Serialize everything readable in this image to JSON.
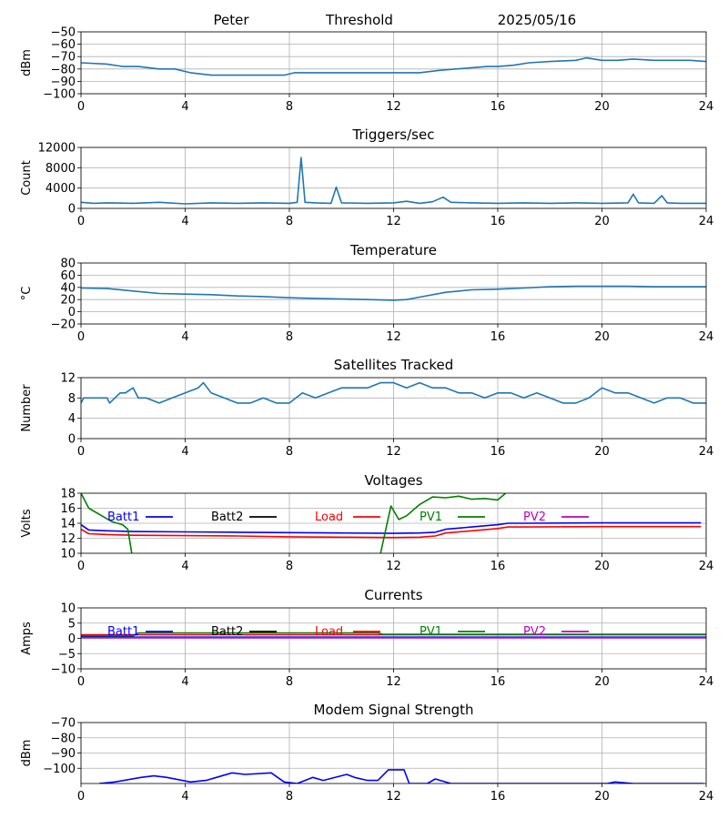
{
  "header": {
    "station": "Peter",
    "mode": "Threshold",
    "date": "2025/05/16"
  },
  "colors": {
    "default": "#1f77b4",
    "Batt1": "#0000ff",
    "Batt2": "#000000",
    "Load": "#ff0000",
    "PV1": "#008000",
    "PV2": "#bf00bf",
    "grid": "#b0b0b0"
  },
  "chart_data": [
    {
      "id": "threshold",
      "type": "line",
      "title": "",
      "ylabel": "dBm",
      "xlim": [
        0,
        24
      ],
      "xticks": [
        0,
        4,
        8,
        12,
        16,
        20,
        24
      ],
      "ylim": [
        -100,
        -50
      ],
      "yticks": [
        -100,
        -90,
        -80,
        -70,
        -60,
        -50
      ],
      "grid": true,
      "series": [
        {
          "color": "#1f77b4",
          "x": [
            0,
            1,
            1.6,
            2.2,
            3,
            3.6,
            4.2,
            5,
            6,
            7,
            7.8,
            8.2,
            9,
            10,
            11,
            12,
            13,
            13.8,
            14.4,
            15,
            15.6,
            16,
            16.6,
            17.2,
            18,
            19,
            19.4,
            20,
            20.6,
            21.2,
            22,
            22.8,
            23.4,
            24
          ],
          "values": [
            -75,
            -76,
            -78,
            -78,
            -80,
            -80,
            -83,
            -85,
            -85,
            -85,
            -85,
            -83,
            -83,
            -83,
            -83,
            -83,
            -83,
            -81,
            -80,
            -79,
            -78,
            -78,
            -77,
            -75,
            -74,
            -73,
            -71,
            -73,
            -73,
            -72,
            -73,
            -73,
            -73,
            -74
          ]
        }
      ]
    },
    {
      "id": "triggers",
      "type": "line",
      "title": "Triggers/sec",
      "ylabel": "Count",
      "xlim": [
        0,
        24
      ],
      "xticks": [
        0,
        4,
        8,
        12,
        16,
        20,
        24
      ],
      "ylim": [
        0,
        12000
      ],
      "yticks": [
        0,
        4000,
        8000,
        12000
      ],
      "grid": true,
      "series": [
        {
          "color": "#1f77b4",
          "x": [
            0,
            0.5,
            1,
            2,
            3,
            4,
            5,
            6,
            7,
            8,
            8.3,
            8.45,
            8.6,
            9,
            9.6,
            9.8,
            10,
            11,
            12,
            12.5,
            13,
            13.5,
            13.9,
            14.2,
            15,
            16,
            17,
            18,
            19,
            20,
            21,
            21.2,
            21.4,
            22,
            22.3,
            22.5,
            23,
            24
          ],
          "values": [
            1200,
            1000,
            1100,
            1000,
            1200,
            900,
            1100,
            1000,
            1100,
            1000,
            1200,
            10000,
            1200,
            1100,
            1000,
            4200,
            1100,
            1000,
            1100,
            1400,
            1000,
            1300,
            2200,
            1200,
            1100,
            1000,
            1100,
            1000,
            1100,
            1000,
            1100,
            2800,
            1100,
            1000,
            2500,
            1100,
            1000,
            1000
          ]
        }
      ]
    },
    {
      "id": "temperature",
      "type": "line",
      "title": "Temperature",
      "ylabel": "°C",
      "xlim": [
        0,
        24
      ],
      "xticks": [
        0,
        4,
        8,
        12,
        16,
        20,
        24
      ],
      "ylim": [
        -20,
        80
      ],
      "yticks": [
        -20,
        0,
        20,
        40,
        60,
        80
      ],
      "grid": true,
      "series": [
        {
          "color": "#1f77b4",
          "x": [
            0,
            1,
            2,
            3,
            4,
            5,
            6,
            7,
            8,
            9,
            10,
            11,
            12,
            12.5,
            13,
            14,
            15,
            16,
            17,
            18,
            19,
            20,
            21,
            22,
            23,
            24
          ],
          "values": [
            39,
            38,
            34,
            30,
            29,
            28,
            26,
            25,
            23,
            22,
            21,
            20,
            19,
            20,
            24,
            32,
            36,
            37,
            39,
            41,
            42,
            42,
            42,
            41,
            41,
            41
          ]
        }
      ]
    },
    {
      "id": "satellites",
      "type": "line",
      "title": "Satellites Tracked",
      "ylabel": "Number",
      "xlim": [
        0,
        24
      ],
      "xticks": [
        0,
        4,
        8,
        12,
        16,
        20,
        24
      ],
      "ylim": [
        0,
        12
      ],
      "yticks": [
        0,
        4,
        8,
        12
      ],
      "grid": true,
      "series": [
        {
          "color": "#1f77b4",
          "x": [
            0,
            0.1,
            1,
            1.1,
            1.5,
            1.7,
            2,
            2.2,
            2.5,
            3,
            3.5,
            4,
            4.5,
            4.7,
            5,
            5.5,
            6,
            6.5,
            7,
            7.5,
            8,
            8.5,
            9,
            9.5,
            10,
            10.5,
            11,
            11.5,
            12,
            12.5,
            13,
            13.5,
            14,
            14.5,
            15,
            15.5,
            16,
            16.5,
            17,
            17.5,
            18,
            18.5,
            19,
            19.5,
            20,
            20.5,
            21,
            21.5,
            22,
            22.5,
            23,
            23.5,
            24
          ],
          "values": [
            7,
            8,
            8,
            7,
            9,
            9,
            10,
            8,
            8,
            7,
            8,
            9,
            10,
            11,
            9,
            8,
            7,
            7,
            8,
            7,
            7,
            9,
            8,
            9,
            10,
            10,
            10,
            11,
            11,
            10,
            11,
            10,
            10,
            9,
            9,
            8,
            9,
            9,
            8,
            9,
            8,
            7,
            7,
            8,
            10,
            9,
            9,
            8,
            7,
            8,
            8,
            7,
            7
          ]
        }
      ]
    },
    {
      "id": "voltages",
      "type": "line",
      "title": "Voltages",
      "ylabel": "Volts",
      "xlim": [
        0,
        24
      ],
      "xticks": [
        0,
        4,
        8,
        12,
        16,
        20,
        24
      ],
      "ylim": [
        10,
        18
      ],
      "yticks": [
        10,
        12,
        14,
        16,
        18
      ],
      "grid": true,
      "legend": [
        "Batt1",
        "Batt2",
        "Load",
        "PV1",
        "PV2"
      ],
      "series": [
        {
          "name": "Batt1",
          "color": "#0000ff",
          "x": [
            0,
            0.3,
            1,
            2,
            4,
            6,
            8,
            10,
            12,
            13,
            13.6,
            14,
            15,
            16,
            16.4,
            17,
            20,
            23.8
          ],
          "values": [
            13.8,
            13.1,
            13.0,
            12.9,
            12.85,
            12.8,
            12.75,
            12.7,
            12.65,
            12.7,
            12.8,
            13.2,
            13.5,
            13.8,
            14.0,
            14.0,
            14.05,
            14.05
          ]
        },
        {
          "name": "Load",
          "color": "#ff0000",
          "x": [
            0,
            0.3,
            1,
            2,
            4,
            6,
            8,
            10,
            12,
            13,
            13.6,
            14,
            15,
            16,
            16.4,
            17,
            20,
            23.8
          ],
          "values": [
            13.2,
            12.6,
            12.5,
            12.4,
            12.35,
            12.3,
            12.2,
            12.15,
            12.1,
            12.15,
            12.3,
            12.7,
            13.0,
            13.3,
            13.5,
            13.5,
            13.55,
            13.55
          ]
        },
        {
          "name": "PV1",
          "color": "#008000",
          "x": [
            0,
            0.3,
            0.8,
            1.2,
            1.6,
            1.8,
            1.95
          ],
          "values": [
            18,
            16,
            15,
            14.2,
            13.8,
            13.2,
            10
          ]
        },
        {
          "name": "PV1",
          "color": "#008000",
          "x": [
            11.5,
            11.9,
            12.2,
            12.5,
            13,
            13.5,
            14,
            14.5,
            15,
            15.5,
            16,
            16.3
          ],
          "values": [
            10,
            16.3,
            14.5,
            15.0,
            16.5,
            17.5,
            17.4,
            17.6,
            17.2,
            17.3,
            17.1,
            18
          ]
        }
      ]
    },
    {
      "id": "currents",
      "type": "line",
      "title": "Currents",
      "ylabel": "Amps",
      "xlim": [
        0,
        24
      ],
      "xticks": [
        0,
        4,
        8,
        12,
        16,
        20,
        24
      ],
      "ylim": [
        -10,
        10
      ],
      "yticks": [
        -10,
        -5,
        0,
        5,
        10
      ],
      "grid": true,
      "legend": [
        "Batt1",
        "Batt2",
        "Load",
        "PV1",
        "PV2"
      ],
      "series": [
        {
          "name": "Load",
          "color": "#ff0000",
          "x": [
            0,
            24
          ],
          "values": [
            1.2,
            1.2
          ]
        },
        {
          "name": "PV1",
          "color": "#008000",
          "x": [
            0,
            2,
            2.2,
            11.4,
            11.6,
            12,
            24
          ],
          "values": [
            0.8,
            0.8,
            1.8,
            1.8,
            1.3,
            1.3,
            1.3
          ]
        },
        {
          "name": "Batt1",
          "color": "#0000ff",
          "x": [
            0,
            24
          ],
          "values": [
            0.4,
            0.4
          ]
        },
        {
          "name": "PV2",
          "color": "#bf00bf",
          "x": [
            0,
            24
          ],
          "values": [
            0.2,
            0.2
          ]
        }
      ]
    },
    {
      "id": "modem",
      "type": "line",
      "title": "Modem Signal Strength",
      "ylabel": "dBm",
      "xlim": [
        0,
        24
      ],
      "xticks": [
        0,
        4,
        8,
        12,
        16,
        20,
        24
      ],
      "ylim": [
        -110,
        -70
      ],
      "yticks": [
        -100,
        -90,
        -80,
        -70
      ],
      "grid": true,
      "series": [
        {
          "color": "#0000ff",
          "x": [
            0.7,
            1.3,
            2.3,
            2.8,
            3.3,
            4.2,
            4.8,
            5.2,
            5.8,
            6.3,
            7.3,
            7.8,
            8.3,
            8.6,
            8.9,
            9.3,
            10.2,
            10.5,
            11,
            11.4,
            11.8,
            12.4,
            12.6,
            13.3,
            13.6,
            14.2,
            20.2,
            20.5,
            21.2,
            23.9
          ],
          "values": [
            -110,
            -109,
            -106,
            -105,
            -106,
            -109,
            -108,
            -106,
            -103,
            -104,
            -103,
            -109,
            -110,
            -108,
            -106,
            -108,
            -104,
            -106,
            -108,
            -108,
            -101,
            -101,
            -110,
            -110,
            -107,
            -110,
            -110,
            -109,
            -110,
            -110
          ]
        }
      ]
    }
  ]
}
